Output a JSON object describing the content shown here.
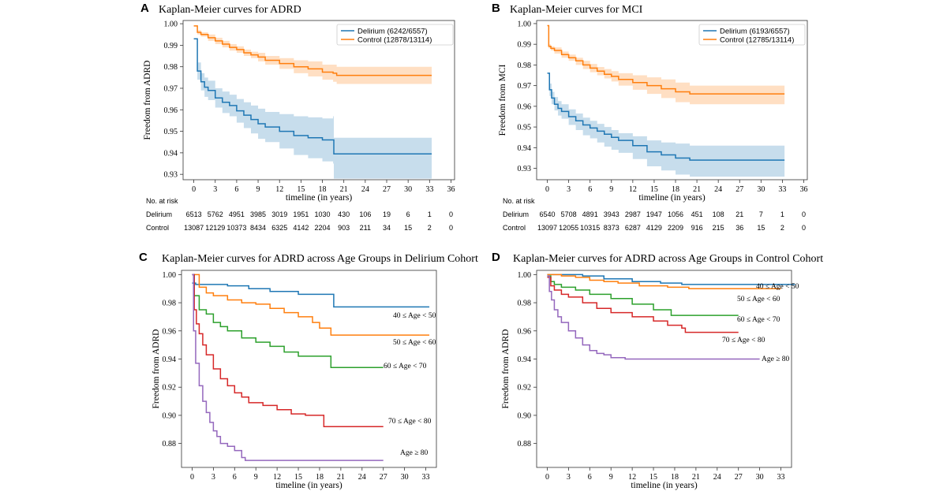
{
  "colors": {
    "blue": "#1f77b4",
    "orange": "#ff7f0e",
    "green": "#2ca02c",
    "red": "#d62728",
    "purple": "#9467bd",
    "axis": "#333333"
  },
  "chart_data": [
    {
      "panel": "A",
      "type": "line",
      "title": "Kaplan-Meier curves for ADRD",
      "xlabel": "timeline (in years)",
      "ylabel": "Freedom from ADRD",
      "xlim": [
        -1.5,
        36.5
      ],
      "ylim": [
        0.9275,
        1.0015
      ],
      "xticks": [
        0,
        3,
        6,
        9,
        12,
        15,
        18,
        21,
        24,
        27,
        30,
        33,
        36
      ],
      "yticks": [
        0.93,
        0.94,
        0.95,
        0.96,
        0.97,
        0.98,
        0.99,
        1.0
      ],
      "ytick_labels": [
        "0.93",
        "0.94",
        "0.95",
        "0.96",
        "0.97",
        "0.98",
        "0.99",
        "1.00"
      ],
      "legend": {
        "position": "top-right",
        "framed": true
      },
      "series": [
        {
          "name": "Delirium (6242/6557)",
          "color": "#1f77b4",
          "x": [
            0,
            0.5,
            1,
            1.5,
            2,
            3,
            4,
            5,
            6,
            7,
            8,
            9,
            10,
            12,
            14,
            16,
            18,
            19.5,
            19.6,
            22,
            26,
            30,
            33.3
          ],
          "y": [
            0.993,
            0.978,
            0.973,
            0.9705,
            0.969,
            0.9655,
            0.9635,
            0.962,
            0.9595,
            0.9575,
            0.9555,
            0.9535,
            0.952,
            0.95,
            0.948,
            0.947,
            0.946,
            0.946,
            0.9395,
            0.9395,
            0.9395,
            0.9395,
            0.9395
          ],
          "lower": [
            0.993,
            0.974,
            0.969,
            0.966,
            0.9645,
            0.961,
            0.9585,
            0.957,
            0.954,
            0.9515,
            0.949,
            0.9465,
            0.945,
            0.942,
            0.939,
            0.9375,
            0.936,
            0.935,
            0.928,
            0.928,
            0.928,
            0.928,
            0.928
          ],
          "upper": [
            0.993,
            0.982,
            0.977,
            0.975,
            0.9735,
            0.97,
            0.9685,
            0.967,
            0.965,
            0.9635,
            0.962,
            0.9605,
            0.959,
            0.958,
            0.957,
            0.9565,
            0.956,
            0.957,
            0.947,
            0.947,
            0.947,
            0.947,
            0.947
          ]
        },
        {
          "name": "Control (12878/13114)",
          "color": "#ff7f0e",
          "x": [
            0,
            0.5,
            1,
            2,
            3,
            4,
            5,
            6,
            7,
            8,
            9,
            10,
            12,
            14,
            16,
            18,
            19.5,
            20,
            24,
            28,
            33.3
          ],
          "y": [
            0.999,
            0.996,
            0.995,
            0.9935,
            0.992,
            0.9905,
            0.989,
            0.988,
            0.9865,
            0.9855,
            0.9845,
            0.983,
            0.9815,
            0.98,
            0.979,
            0.9775,
            0.977,
            0.976,
            0.976,
            0.976,
            0.976
          ],
          "lower": [
            0.999,
            0.995,
            0.994,
            0.992,
            0.9905,
            0.989,
            0.9875,
            0.9865,
            0.985,
            0.984,
            0.9825,
            0.981,
            0.979,
            0.977,
            0.9755,
            0.974,
            0.973,
            0.972,
            0.972,
            0.972,
            0.972
          ],
          "upper": [
            0.999,
            0.997,
            0.996,
            0.995,
            0.9935,
            0.992,
            0.9905,
            0.9895,
            0.988,
            0.987,
            0.9865,
            0.985,
            0.984,
            0.983,
            0.9825,
            0.981,
            0.981,
            0.98,
            0.98,
            0.98,
            0.98
          ]
        }
      ],
      "risk_table": {
        "header": "No. at risk",
        "times": [
          0,
          3,
          6,
          9,
          12,
          15,
          18,
          21,
          24,
          27,
          30,
          33,
          36
        ],
        "rows": [
          {
            "label": "Delirium",
            "values": [
              "6513",
              "5762",
              "4951",
              "3985",
              "3019",
              "1951",
              "1030",
              "430",
              "106",
              "19",
              "6",
              "1",
              "0"
            ]
          },
          {
            "label": "Control",
            "values": [
              "13087",
              "12129",
              "10373",
              "8434",
              "6325",
              "4142",
              "2204",
              "903",
              "211",
              "34",
              "15",
              "2",
              "0"
            ]
          }
        ]
      }
    },
    {
      "panel": "B",
      "type": "line",
      "title": "Kaplan-Meier curves for MCI",
      "xlabel": "timeline (in years)",
      "ylabel": "Freedom from MCI",
      "xlim": [
        -1.5,
        36.5
      ],
      "ylim": [
        0.9245,
        1.0015
      ],
      "xticks": [
        0,
        3,
        6,
        9,
        12,
        15,
        18,
        21,
        24,
        27,
        30,
        33,
        36
      ],
      "yticks": [
        0.93,
        0.94,
        0.95,
        0.96,
        0.97,
        0.98,
        0.99,
        1.0
      ],
      "ytick_labels": [
        "0.93",
        "0.94",
        "0.95",
        "0.96",
        "0.97",
        "0.98",
        "0.99",
        "1.00"
      ],
      "legend": {
        "position": "top-right",
        "framed": true
      },
      "series": [
        {
          "name": "Delirium (6193/6557)",
          "color": "#1f77b4",
          "x": [
            0,
            0.3,
            0.6,
            1,
            1.5,
            2,
            3,
            4,
            5,
            6,
            7,
            8,
            9,
            10,
            12,
            14,
            16,
            18,
            20,
            22,
            26,
            30,
            33.3
          ],
          "y": [
            0.976,
            0.968,
            0.964,
            0.961,
            0.959,
            0.9575,
            0.955,
            0.953,
            0.951,
            0.9495,
            0.948,
            0.9465,
            0.945,
            0.9435,
            0.941,
            0.938,
            0.9365,
            0.935,
            0.934,
            0.934,
            0.934,
            0.934,
            0.934
          ],
          "lower": [
            0.976,
            0.965,
            0.961,
            0.958,
            0.9555,
            0.954,
            0.951,
            0.9485,
            0.946,
            0.9445,
            0.9425,
            0.9405,
            0.939,
            0.9375,
            0.9345,
            0.931,
            0.929,
            0.927,
            0.926,
            0.926,
            0.926,
            0.926,
            0.926
          ],
          "upper": [
            0.976,
            0.971,
            0.967,
            0.9645,
            0.9625,
            0.961,
            0.9585,
            0.9565,
            0.9545,
            0.953,
            0.9515,
            0.95,
            0.9485,
            0.947,
            0.9455,
            0.9435,
            0.9425,
            0.942,
            0.941,
            0.941,
            0.941,
            0.941,
            0.941
          ]
        },
        {
          "name": "Control (12785/13114)",
          "color": "#ff7f0e",
          "x": [
            0,
            0.2,
            0.5,
            1,
            2,
            3,
            4,
            5,
            6,
            7,
            8,
            9,
            10,
            12,
            14,
            16,
            18,
            20,
            24,
            28,
            33.3
          ],
          "y": [
            0.999,
            0.989,
            0.988,
            0.987,
            0.985,
            0.9835,
            0.982,
            0.98,
            0.9785,
            0.977,
            0.9755,
            0.9745,
            0.973,
            0.9715,
            0.97,
            0.9685,
            0.967,
            0.966,
            0.966,
            0.966,
            0.966
          ],
          "lower": [
            0.999,
            0.988,
            0.987,
            0.9855,
            0.9835,
            0.982,
            0.98,
            0.978,
            0.9765,
            0.975,
            0.9735,
            0.972,
            0.97,
            0.968,
            0.966,
            0.964,
            0.962,
            0.961,
            0.961,
            0.961,
            0.961
          ],
          "upper": [
            0.999,
            0.99,
            0.989,
            0.9885,
            0.9865,
            0.985,
            0.9835,
            0.982,
            0.9805,
            0.979,
            0.978,
            0.977,
            0.976,
            0.975,
            0.974,
            0.973,
            0.9715,
            0.97,
            0.97,
            0.97,
            0.97
          ]
        }
      ],
      "risk_table": {
        "header": "No. at risk",
        "times": [
          0,
          3,
          6,
          9,
          12,
          15,
          18,
          21,
          24,
          27,
          30,
          33,
          36
        ],
        "rows": [
          {
            "label": "Delirium",
            "values": [
              "6540",
              "5708",
              "4891",
              "3943",
              "2987",
              "1947",
              "1056",
              "451",
              "108",
              "21",
              "7",
              "1",
              "0"
            ]
          },
          {
            "label": "Control",
            "values": [
              "13097",
              "12055",
              "10315",
              "8373",
              "6287",
              "4129",
              "2209",
              "916",
              "215",
              "36",
              "15",
              "2",
              "0"
            ]
          }
        ]
      }
    },
    {
      "panel": "C",
      "type": "line",
      "title": "Kaplan-Meier curves for ADRD across Age Groups in Delirium Cohort",
      "xlabel": "timeline (in years)",
      "ylabel": "Freedom from ADRD",
      "xlim": [
        -1.5,
        34.5
      ],
      "ylim": [
        0.863,
        1.003
      ],
      "xticks": [
        0,
        3,
        6,
        9,
        12,
        15,
        18,
        21,
        24,
        27,
        30,
        33
      ],
      "yticks": [
        0.88,
        0.9,
        0.92,
        0.94,
        0.96,
        0.98,
        1.0
      ],
      "ytick_labels": [
        "0.88",
        "0.90",
        "0.92",
        "0.94",
        "0.96",
        "0.98",
        "1.00"
      ],
      "legend": {
        "position": "inline-right"
      },
      "series": [
        {
          "name": "40 ≤ Age < 50",
          "color": "#1f77b4",
          "x": [
            0,
            0.5,
            5,
            8,
            11,
            15,
            19.5,
            20,
            25,
            33.5
          ],
          "y": [
            0.994,
            0.993,
            0.992,
            0.99,
            0.988,
            0.986,
            0.986,
            0.977,
            0.977,
            0.977
          ]
        },
        {
          "name": "50 ≤ Age < 60",
          "color": "#ff7f0e",
          "x": [
            0,
            1,
            2,
            3,
            5,
            7,
            9,
            11,
            13,
            15,
            17,
            17.8,
            18,
            19.5,
            19.6,
            33.5
          ],
          "y": [
            1.0,
            0.991,
            0.987,
            0.985,
            0.982,
            0.98,
            0.979,
            0.976,
            0.973,
            0.97,
            0.966,
            0.966,
            0.962,
            0.962,
            0.957,
            0.957
          ]
        },
        {
          "name": "60 ≤ Age < 70",
          "color": "#2ca02c",
          "x": [
            0,
            0.3,
            1,
            2,
            3,
            4,
            5,
            7,
            9,
            11,
            13,
            15,
            19.5,
            19.6,
            27
          ],
          "y": [
            1.0,
            0.985,
            0.975,
            0.972,
            0.966,
            0.963,
            0.96,
            0.955,
            0.952,
            0.949,
            0.945,
            0.942,
            0.942,
            0.934,
            0.934
          ]
        },
        {
          "name": "70 ≤ Age < 80",
          "color": "#d62728",
          "x": [
            0,
            0.3,
            0.6,
            1,
            1.5,
            2,
            3,
            4,
            5,
            6,
            7,
            8,
            10,
            12,
            14,
            16,
            18,
            18.6,
            27
          ],
          "y": [
            1.0,
            0.975,
            0.965,
            0.958,
            0.95,
            0.943,
            0.933,
            0.926,
            0.921,
            0.916,
            0.913,
            0.909,
            0.907,
            0.904,
            0.901,
            0.9,
            0.9,
            0.892,
            0.892
          ]
        },
        {
          "name": "Age ≥ 80",
          "color": "#9467bd",
          "x": [
            0,
            0.2,
            0.5,
            1,
            1.5,
            2,
            2.5,
            3,
            3.5,
            4,
            5,
            6,
            7,
            7.5,
            27
          ],
          "y": [
            1.0,
            0.96,
            0.937,
            0.921,
            0.91,
            0.902,
            0.895,
            0.889,
            0.885,
            0.88,
            0.878,
            0.875,
            0.87,
            0.868,
            0.868
          ]
        }
      ]
    },
    {
      "panel": "D",
      "type": "line",
      "title": "Kaplan-Meier curves for ADRD across Age Groups in Control Cohort",
      "xlabel": "timeline (in years)",
      "ylabel": "Freedom from ADRD",
      "xlim": [
        -1.5,
        34.5
      ],
      "ylim": [
        0.863,
        1.003
      ],
      "xticks": [
        0,
        3,
        6,
        9,
        12,
        15,
        18,
        21,
        24,
        27,
        30,
        33
      ],
      "yticks": [
        0.88,
        0.9,
        0.92,
        0.94,
        0.96,
        0.98,
        1.0
      ],
      "ytick_labels": [
        "0.88",
        "0.90",
        "0.92",
        "0.94",
        "0.96",
        "0.98",
        "1.00"
      ],
      "legend": {
        "position": "inline-right"
      },
      "series": [
        {
          "name": "40 ≤ Age < 50",
          "color": "#1f77b4",
          "x": [
            0,
            3,
            5,
            8,
            12,
            16,
            19,
            35
          ],
          "y": [
            1.0,
            1.0,
            0.999,
            0.997,
            0.995,
            0.994,
            0.993,
            0.993
          ]
        },
        {
          "name": "50 ≤ Age < 60",
          "color": "#ff7f0e",
          "x": [
            0,
            2,
            4,
            6,
            8,
            10,
            13,
            17,
            20,
            33
          ],
          "y": [
            1.0,
            0.999,
            0.998,
            0.996,
            0.995,
            0.994,
            0.992,
            0.991,
            0.99,
            0.99
          ]
        },
        {
          "name": "60 ≤ Age < 70",
          "color": "#2ca02c",
          "x": [
            0,
            0.5,
            1,
            2,
            4,
            6,
            9,
            12,
            15,
            17.5,
            27
          ],
          "y": [
            0.999,
            0.995,
            0.993,
            0.991,
            0.989,
            0.986,
            0.983,
            0.979,
            0.975,
            0.971,
            0.971
          ]
        },
        {
          "name": "70 ≤ Age < 80",
          "color": "#d62728",
          "x": [
            0,
            0.5,
            1,
            2,
            3,
            5,
            7,
            9,
            12,
            15,
            17,
            19,
            19.5,
            27
          ],
          "y": [
            0.998,
            0.992,
            0.989,
            0.986,
            0.984,
            0.98,
            0.976,
            0.973,
            0.97,
            0.967,
            0.964,
            0.962,
            0.959,
            0.959
          ]
        },
        {
          "name": "Age ≥ 80",
          "color": "#9467bd",
          "x": [
            0,
            0.3,
            0.6,
            1,
            1.5,
            2,
            3,
            4,
            5,
            6,
            7,
            8,
            9,
            11,
            30
          ],
          "y": [
            0.999,
            0.988,
            0.982,
            0.975,
            0.97,
            0.966,
            0.96,
            0.955,
            0.95,
            0.946,
            0.944,
            0.943,
            0.941,
            0.94,
            0.94
          ]
        }
      ]
    }
  ]
}
